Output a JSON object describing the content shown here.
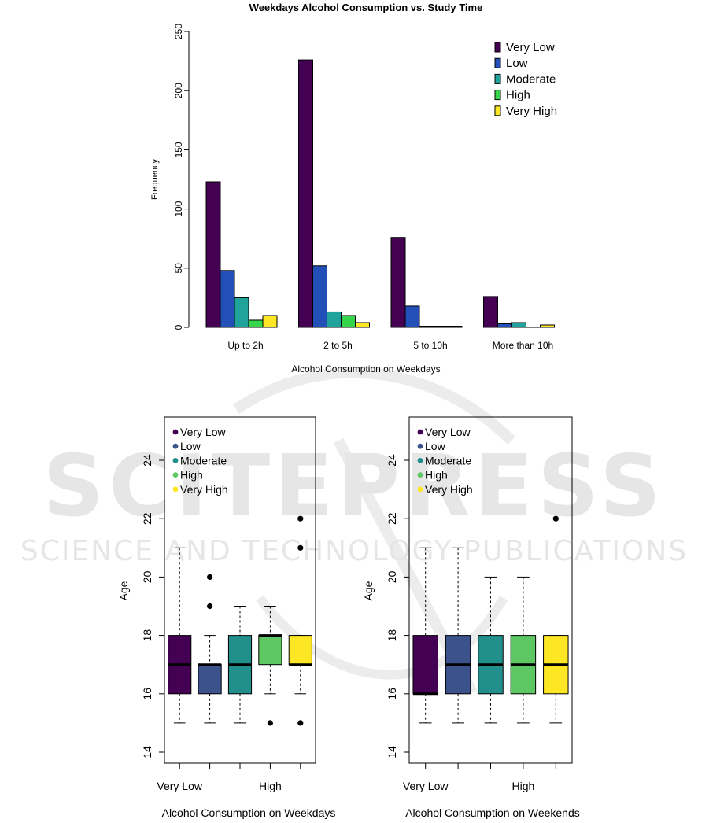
{
  "watermark": {
    "brand": "SCITEPRESS",
    "tagline": "SCIENCE AND TECHNOLOGY PUBLICATIONS"
  },
  "legend_colors": [
    "#440154",
    "#3b528b",
    "#21908c",
    "#5dc863",
    "#fde725"
  ],
  "chart_data": [
    {
      "type": "bar",
      "title": "Weekdays Alcohol Consumption vs. Study Time",
      "xlabel": "Alcohol Consumption on Weekdays",
      "ylabel": "Frequency",
      "ylim": [
        0,
        250
      ],
      "yticks": [
        0,
        50,
        100,
        150,
        200,
        250
      ],
      "categories": [
        "Up to 2h",
        "2 to 5h",
        "5 to 10h",
        "More than 10h"
      ],
      "legend_position": "top-right",
      "series": [
        {
          "name": "Very Low",
          "color": "#440154",
          "values": [
            123,
            226,
            76,
            26
          ]
        },
        {
          "name": "Low",
          "color": "#2250b8",
          "values": [
            48,
            52,
            18,
            3
          ]
        },
        {
          "name": "Moderate",
          "color": "#1fa39a",
          "values": [
            25,
            13,
            1,
            4
          ]
        },
        {
          "name": "High",
          "color": "#35d44a",
          "values": [
            6,
            10,
            1,
            0
          ]
        },
        {
          "name": "Very High",
          "color": "#fde725",
          "values": [
            10,
            4,
            1,
            2
          ]
        }
      ]
    },
    {
      "type": "box",
      "title": "",
      "xlabel": "Alcohol Consumption on Weekdays",
      "ylabel": "Age",
      "ylim": [
        14,
        26
      ],
      "yticks": [
        14,
        16,
        18,
        20,
        22,
        24
      ],
      "xtick_labels": [
        "Very Low",
        "High"
      ],
      "legend_position": "top-left",
      "groups": [
        {
          "name": "Very Low",
          "color": "#440154",
          "min": 15,
          "q1": 16,
          "median": 17,
          "q3": 18,
          "max": 21,
          "outliers": []
        },
        {
          "name": "Low",
          "color": "#3b528b",
          "min": 15,
          "q1": 16,
          "median": 17,
          "q3": 17,
          "max": 18,
          "outliers": [
            19,
            20
          ]
        },
        {
          "name": "Moderate",
          "color": "#21908c",
          "min": 15,
          "q1": 16,
          "median": 17,
          "q3": 18,
          "max": 19,
          "outliers": []
        },
        {
          "name": "High",
          "color": "#5dc863",
          "min": 16,
          "q1": 17,
          "median": 18,
          "q3": 18,
          "max": 19,
          "outliers": [
            15
          ]
        },
        {
          "name": "Very High",
          "color": "#fde725",
          "min": 16,
          "q1": 17,
          "median": 17,
          "q3": 18,
          "max": 18,
          "outliers": [
            15,
            21,
            22
          ]
        }
      ]
    },
    {
      "type": "box",
      "title": "",
      "xlabel": "Alcohol Consumption on Weekends",
      "ylabel": "Age",
      "ylim": [
        14,
        26
      ],
      "yticks": [
        14,
        16,
        18,
        20,
        22,
        24
      ],
      "xtick_labels": [
        "Very Low",
        "High"
      ],
      "legend_position": "top-left",
      "groups": [
        {
          "name": "Very Low",
          "color": "#440154",
          "min": 15,
          "q1": 16,
          "median": 16,
          "q3": 18,
          "max": 21,
          "outliers": []
        },
        {
          "name": "Low",
          "color": "#3b528b",
          "min": 15,
          "q1": 16,
          "median": 17,
          "q3": 18,
          "max": 21,
          "outliers": []
        },
        {
          "name": "Moderate",
          "color": "#21908c",
          "min": 15,
          "q1": 16,
          "median": 17,
          "q3": 18,
          "max": 20,
          "outliers": []
        },
        {
          "name": "High",
          "color": "#5dc863",
          "min": 15,
          "q1": 16,
          "median": 17,
          "q3": 18,
          "max": 20,
          "outliers": []
        },
        {
          "name": "Very High",
          "color": "#fde725",
          "min": 15,
          "q1": 16,
          "median": 17,
          "q3": 18,
          "max": 18,
          "outliers": [
            22
          ]
        }
      ]
    }
  ]
}
